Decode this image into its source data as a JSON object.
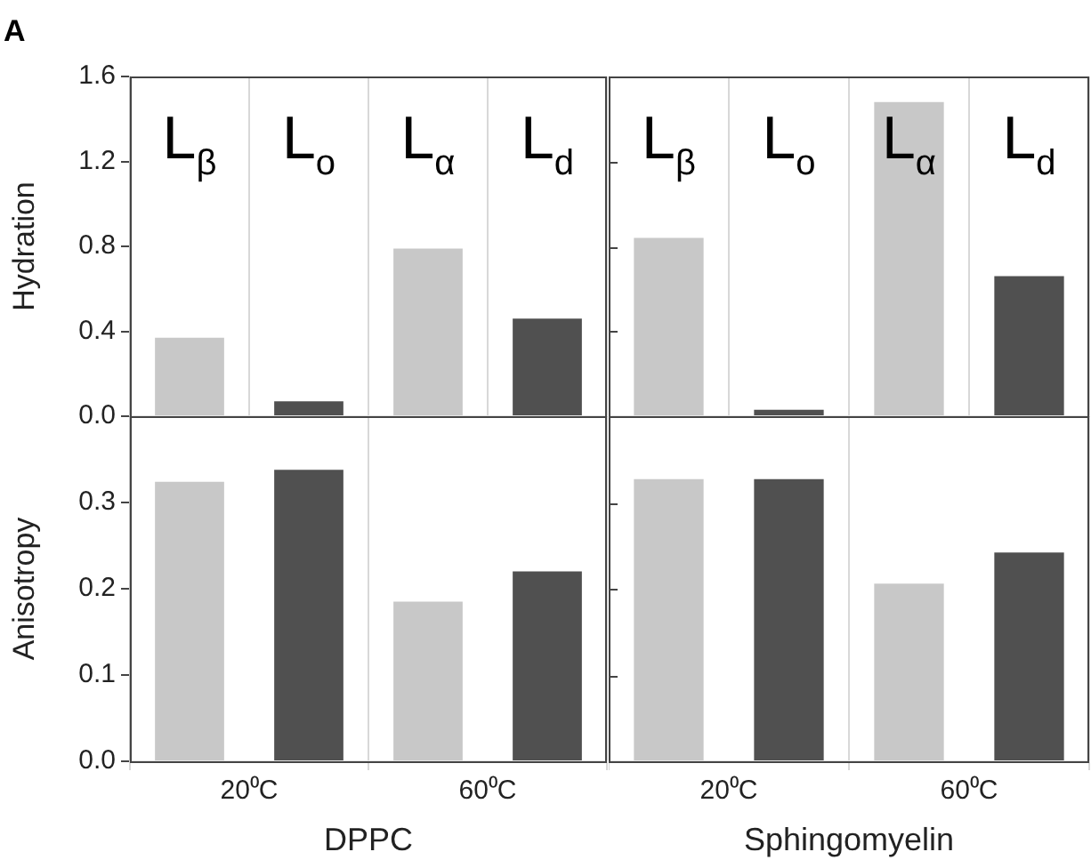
{
  "chart_data": [
    {
      "type": "bar",
      "title": "A",
      "ylabel": "Hydration",
      "categories": [
        "L$_{β}$",
        "L$_{o}$",
        "L$_{α}$",
        "L$_{d}$"
      ],
      "values": [
        0.37,
        0.07,
        0.79,
        0.46
      ],
      "colors": [
        "#c8c8c8",
        "#505050",
        "#c8c8c8",
        "#505050"
      ],
      "ylim": [
        0,
        1.6
      ],
      "yticks": [
        {
          "value": 0,
          "label": "0.0"
        },
        0.4,
        0.8,
        1.2,
        1.6
      ],
      "grid": "x"
    },
    {
      "type": "bar",
      "categories": [
        "L$_{β}$",
        "L$_{o}$",
        "L$_{α}$",
        "L$_{d}$"
      ],
      "values": [
        0.84,
        0.03,
        1.48,
        0.66
      ],
      "colors": [
        "#c8c8c8",
        "#505050",
        "#c8c8c8",
        "#505050"
      ],
      "ylim": [
        0,
        1.6
      ],
      "yticks": [
        {
          "value": 0,
          "label": null
        },
        {
          "value": 0.4,
          "label": null
        },
        {
          "value": 0.8,
          "label": null
        },
        {
          "value": 1.2,
          "label": null
        },
        {
          "value": 1.6,
          "label": null
        }
      ],
      "grid": "x",
      "tick_labels": "x"
    },
    {
      "type": "bar",
      "ylabel": "Anisotropy",
      "xlabel": "DPPC",
      "categories": [
        "20⁰C",
        "60⁰C"
      ],
      "series": [
        {
          "color": "#c8c8c8",
          "values": [
            0.324,
            0.185
          ]
        },
        {
          "color": "#505050",
          "values": [
            0.338,
            0.22
          ]
        }
      ],
      "ylim": [
        0,
        0.4
      ],
      "yticks": [
        {
          "value": 0,
          "label": "0.0"
        },
        0.1,
        0.2,
        0.3
      ],
      "grid": "x"
    },
    {
      "type": "bar",
      "xlabel": "Sphingomyelin",
      "categories": [
        "20⁰C",
        "60⁰C"
      ],
      "series": [
        {
          "color": "#c8c8c8",
          "values": [
            0.327,
            0.206
          ]
        },
        {
          "color": "#505050",
          "values": [
            0.327,
            0.242
          ]
        }
      ],
      "ylim": [
        0,
        0.4
      ],
      "yticks": [
        {
          "value": 0,
          "label": null
        },
        {
          "value": 0.1,
          "label": null
        },
        {
          "value": 0.2,
          "label": null
        },
        {
          "value": 0.3,
          "label": null
        }
      ],
      "grid": "x",
      "tick_labels": "x"
    }
  ]
}
